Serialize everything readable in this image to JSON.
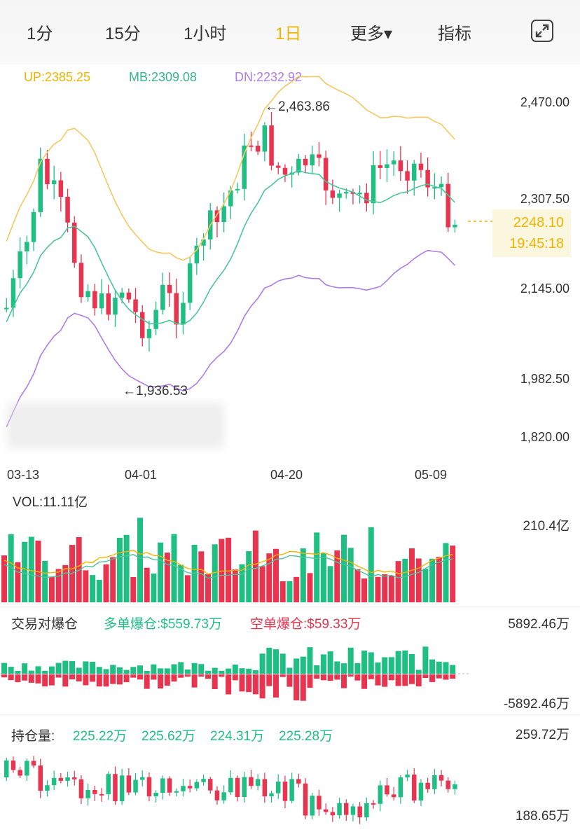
{
  "tabs": [
    {
      "label": "1分",
      "active": false
    },
    {
      "label": "15分",
      "active": false
    },
    {
      "label": "1小时",
      "active": false
    },
    {
      "label": "1日",
      "active": true
    },
    {
      "label": "更多▾",
      "active": false
    },
    {
      "label": "指标",
      "active": false
    }
  ],
  "fullscreen_icon": "expand-icon",
  "boll": {
    "up": "UP:2385.25",
    "mb": "MB:2309.08",
    "dn": "DN:2232.92",
    "colors": {
      "up": "#f0b400",
      "mb": "#36b58a",
      "dn": "#b07ce8"
    }
  },
  "main_chart": {
    "y_axis": [
      "2,470.00",
      "2,307.50",
      "2,145.00",
      "1,982.50",
      "1,820.00"
    ],
    "x_axis": [
      "03-13",
      "04-01",
      "04-20",
      "05-09"
    ],
    "high_marker": "←2,463.86",
    "low_marker": "←1,936.53",
    "last_price": "2248.10",
    "countdown": "19:45:18",
    "up_color": "#1fbf84",
    "down_color": "#e8344e"
  },
  "volume": {
    "label": "VOL:11.11亿",
    "max": "210.4亿"
  },
  "liquidation": {
    "title": "交易对爆仓",
    "long": "多单爆仓:$559.73万",
    "short": "空单爆仓:$59.33万",
    "max": "5892.46万",
    "min": "-5892.46万"
  },
  "open_interest": {
    "label": "持仓量:",
    "v1": "225.22万",
    "v2": "225.62万",
    "v3": "224.31万",
    "v4": "225.28万",
    "max": "259.72万",
    "min": "188.65万"
  }
}
